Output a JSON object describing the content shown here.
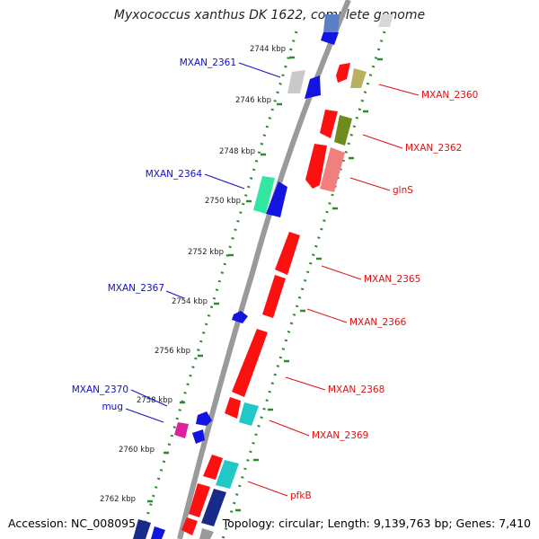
{
  "title": "Myxococcus xanthus DK 1622, complete genome",
  "footer": {
    "accession": "Accession: NC_008095",
    "stats": "Topology: circular; Length: 9,139,763 bp; Genes: 7,410"
  },
  "colors": {
    "backbone": "#9a9a9a",
    "dotted_ring": "#2e8b2e",
    "forward_label": "#1010cc",
    "reverse_label": "#dd1111"
  },
  "ticks": [
    "2744 kbp",
    "2746 kbp",
    "2748 kbp",
    "2750 kbp",
    "2752 kbp",
    "2754 kbp",
    "2756 kbp",
    "2758 kbp",
    "2760 kbp",
    "2762 kbp"
  ],
  "forward_labels": [
    "MXAN_2361",
    "MXAN_2364",
    "MXAN_2367",
    "MXAN_2370",
    "mug"
  ],
  "reverse_labels": [
    "MXAN_2360",
    "MXAN_2362",
    "glnS",
    "MXAN_2365",
    "MXAN_2366",
    "MXAN_2368",
    "MXAN_2369",
    "pfkB"
  ]
}
